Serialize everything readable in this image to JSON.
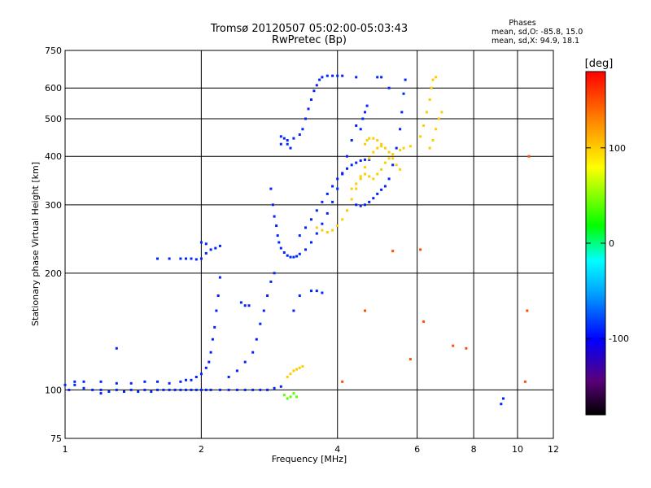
{
  "chart_data": {
    "type": "scatter",
    "title": "Tromsø 20120507 05:02:00-05:03:43",
    "subtitle": "RwPretec (Bp)",
    "xlabel": "Frequency [MHz]",
    "ylabel": "Stationary phase Virtual Height [km]",
    "x_scale": "log",
    "y_scale": "log",
    "xlim": [
      1,
      12
    ],
    "ylim": [
      75,
      750
    ],
    "x_ticks": [
      "1",
      "2",
      "4",
      "6",
      "8",
      "10",
      "12"
    ],
    "x_tick_values": [
      1,
      2,
      4,
      6,
      8,
      10,
      12
    ],
    "y_ticks": [
      "75",
      "100",
      "200",
      "300",
      "400",
      "500",
      "600",
      "750"
    ],
    "y_tick_values": [
      75,
      100,
      200,
      300,
      400,
      500,
      600,
      750
    ],
    "grid": true,
    "phases_info": {
      "heading": "Phases",
      "line1": "mean, sd,O:  -85.8, 15.0",
      "line2": "mean, sd,X:  94.9, 18.1"
    },
    "colorbar": {
      "label": "[deg]",
      "min": -180,
      "max": 180,
      "ticks": [
        "100",
        "0",
        "-100"
      ],
      "tick_values": [
        100,
        0,
        -100
      ],
      "colors": [
        "#000000",
        "#5a007a",
        "#0000ff",
        "#00a8ff",
        "#00ffff",
        "#00ff00",
        "#ffff00",
        "#ff8c00",
        "#ff0000"
      ]
    },
    "series": [
      {
        "mode": "O",
        "phase": -90,
        "points": [
          [
            1.0,
            103
          ],
          [
            1.02,
            100
          ],
          [
            1.05,
            103
          ],
          [
            1.1,
            101
          ],
          [
            1.15,
            100
          ],
          [
            1.2,
            100
          ],
          [
            1.25,
            99
          ],
          [
            1.3,
            100
          ],
          [
            1.35,
            99
          ],
          [
            1.4,
            100
          ],
          [
            1.45,
            99
          ],
          [
            1.5,
            100
          ],
          [
            1.55,
            99
          ],
          [
            1.6,
            100
          ],
          [
            1.65,
            100
          ],
          [
            1.7,
            100
          ],
          [
            1.75,
            100
          ],
          [
            1.8,
            100
          ],
          [
            1.85,
            100
          ],
          [
            1.9,
            100
          ],
          [
            1.95,
            100
          ],
          [
            2.0,
            100
          ],
          [
            2.05,
            100
          ],
          [
            2.1,
            100
          ],
          [
            2.2,
            100
          ],
          [
            2.3,
            100
          ],
          [
            2.4,
            100
          ],
          [
            2.5,
            100
          ],
          [
            2.6,
            100
          ],
          [
            2.7,
            100
          ],
          [
            2.8,
            100
          ],
          [
            2.9,
            101
          ],
          [
            3.0,
            102
          ],
          [
            1.05,
            105
          ],
          [
            1.1,
            105
          ],
          [
            1.2,
            105
          ],
          [
            1.3,
            104
          ],
          [
            1.4,
            104
          ],
          [
            1.5,
            105
          ],
          [
            1.6,
            105
          ],
          [
            1.7,
            104
          ],
          [
            1.8,
            105
          ],
          [
            1.85,
            106
          ],
          [
            1.9,
            106
          ],
          [
            1.95,
            108
          ],
          [
            2.0,
            110
          ],
          [
            2.05,
            114
          ],
          [
            2.08,
            118
          ],
          [
            2.1,
            125
          ],
          [
            2.12,
            135
          ],
          [
            2.14,
            145
          ],
          [
            2.16,
            160
          ],
          [
            2.18,
            175
          ],
          [
            2.2,
            195
          ],
          [
            2.3,
            108
          ],
          [
            2.4,
            112
          ],
          [
            2.5,
            118
          ],
          [
            2.6,
            125
          ],
          [
            2.65,
            135
          ],
          [
            2.7,
            148
          ],
          [
            2.75,
            160
          ],
          [
            2.8,
            175
          ],
          [
            2.85,
            190
          ],
          [
            2.9,
            200
          ],
          [
            2.45,
            168
          ],
          [
            2.5,
            165
          ],
          [
            2.55,
            165
          ],
          [
            1.6,
            218
          ],
          [
            1.7,
            218
          ],
          [
            1.8,
            218
          ],
          [
            1.85,
            218
          ],
          [
            1.9,
            218
          ],
          [
            1.95,
            217
          ],
          [
            2.0,
            218
          ],
          [
            2.05,
            225
          ],
          [
            2.1,
            230
          ],
          [
            2.15,
            232
          ],
          [
            2.2,
            235
          ],
          [
            2.0,
            240
          ],
          [
            2.05,
            238
          ],
          [
            2.85,
            330
          ],
          [
            2.88,
            300
          ],
          [
            2.9,
            280
          ],
          [
            2.93,
            265
          ],
          [
            2.95,
            250
          ],
          [
            2.97,
            240
          ],
          [
            3.0,
            232
          ],
          [
            3.05,
            226
          ],
          [
            3.1,
            222
          ],
          [
            3.15,
            220
          ],
          [
            3.2,
            220
          ],
          [
            3.25,
            221
          ],
          [
            3.3,
            224
          ],
          [
            3.4,
            230
          ],
          [
            3.5,
            240
          ],
          [
            3.6,
            253
          ],
          [
            3.7,
            268
          ],
          [
            3.8,
            285
          ],
          [
            3.9,
            305
          ],
          [
            4.0,
            330
          ],
          [
            4.1,
            360
          ],
          [
            4.2,
            400
          ],
          [
            4.3,
            440
          ],
          [
            4.4,
            480
          ],
          [
            3.3,
            250
          ],
          [
            3.4,
            262
          ],
          [
            3.5,
            275
          ],
          [
            3.6,
            290
          ],
          [
            3.7,
            305
          ],
          [
            3.8,
            320
          ],
          [
            3.9,
            335
          ],
          [
            4.0,
            350
          ],
          [
            4.1,
            362
          ],
          [
            4.2,
            372
          ],
          [
            4.3,
            380
          ],
          [
            4.4,
            385
          ],
          [
            4.5,
            390
          ],
          [
            4.6,
            392
          ],
          [
            4.7,
            392
          ],
          [
            3.0,
            430
          ],
          [
            3.1,
            440
          ],
          [
            3.2,
            445
          ],
          [
            3.3,
            455
          ],
          [
            3.35,
            470
          ],
          [
            3.4,
            500
          ],
          [
            3.45,
            530
          ],
          [
            3.5,
            560
          ],
          [
            3.55,
            590
          ],
          [
            3.6,
            610
          ],
          [
            3.65,
            630
          ],
          [
            3.7,
            640
          ],
          [
            3.8,
            645
          ],
          [
            3.9,
            645
          ],
          [
            4.0,
            645
          ],
          [
            4.1,
            645
          ],
          [
            3.0,
            450
          ],
          [
            3.05,
            445
          ],
          [
            3.1,
            430
          ],
          [
            3.15,
            420
          ],
          [
            4.4,
            300
          ],
          [
            4.5,
            298
          ],
          [
            4.6,
            300
          ],
          [
            4.7,
            305
          ],
          [
            4.8,
            312
          ],
          [
            4.9,
            320
          ],
          [
            5.0,
            328
          ],
          [
            5.1,
            335
          ],
          [
            5.2,
            350
          ],
          [
            5.3,
            380
          ],
          [
            5.4,
            420
          ],
          [
            5.5,
            470
          ],
          [
            5.55,
            520
          ],
          [
            5.6,
            580
          ],
          [
            5.65,
            630
          ],
          [
            4.5,
            470
          ],
          [
            4.55,
            500
          ],
          [
            4.6,
            520
          ],
          [
            4.65,
            540
          ],
          [
            5.2,
            600
          ],
          [
            4.9,
            640
          ],
          [
            5.0,
            640
          ],
          [
            4.4,
            640
          ],
          [
            3.5,
            180
          ],
          [
            3.6,
            180
          ],
          [
            3.7,
            178
          ],
          [
            3.3,
            175
          ],
          [
            3.2,
            160
          ],
          [
            1.3,
            128
          ],
          [
            1.2,
            98
          ],
          [
            9.3,
            95
          ],
          [
            9.2,
            92
          ]
        ]
      },
      {
        "mode": "X",
        "phase": 100,
        "points": [
          [
            3.6,
            262
          ],
          [
            3.7,
            258
          ],
          [
            3.8,
            255
          ],
          [
            3.9,
            258
          ],
          [
            4.0,
            265
          ],
          [
            4.1,
            275
          ],
          [
            4.2,
            290
          ],
          [
            4.3,
            310
          ],
          [
            4.4,
            330
          ],
          [
            4.5,
            350
          ],
          [
            4.6,
            375
          ],
          [
            4.7,
            395
          ],
          [
            4.8,
            410
          ],
          [
            4.9,
            420
          ],
          [
            5.0,
            425
          ],
          [
            4.6,
            430
          ],
          [
            4.65,
            440
          ],
          [
            4.7,
            445
          ],
          [
            4.8,
            445
          ],
          [
            4.9,
            440
          ],
          [
            5.0,
            430
          ],
          [
            5.1,
            420
          ],
          [
            5.2,
            410
          ],
          [
            5.3,
            395
          ],
          [
            5.4,
            380
          ],
          [
            5.5,
            370
          ],
          [
            4.3,
            330
          ],
          [
            4.4,
            340
          ],
          [
            4.5,
            355
          ],
          [
            4.6,
            360
          ],
          [
            4.7,
            355
          ],
          [
            4.8,
            350
          ],
          [
            4.9,
            360
          ],
          [
            5.0,
            370
          ],
          [
            5.1,
            385
          ],
          [
            5.2,
            395
          ],
          [
            5.3,
            405
          ],
          [
            5.5,
            415
          ],
          [
            5.6,
            420
          ],
          [
            5.8,
            425
          ],
          [
            6.1,
            450
          ],
          [
            6.2,
            480
          ],
          [
            6.3,
            520
          ],
          [
            6.4,
            560
          ],
          [
            6.45,
            600
          ],
          [
            6.5,
            630
          ],
          [
            6.4,
            420
          ],
          [
            6.5,
            440
          ],
          [
            6.6,
            470
          ],
          [
            6.7,
            500
          ],
          [
            6.8,
            520
          ],
          [
            6.6,
            640
          ],
          [
            3.1,
            108
          ],
          [
            3.15,
            110
          ],
          [
            3.2,
            112
          ],
          [
            3.25,
            113
          ],
          [
            3.3,
            114
          ],
          [
            3.35,
            115
          ]
        ]
      },
      {
        "mode": "scatter",
        "phase": 40,
        "points": [
          [
            3.05,
            97
          ],
          [
            3.1,
            95
          ],
          [
            3.15,
            96
          ],
          [
            3.2,
            98
          ],
          [
            3.25,
            96
          ]
        ]
      },
      {
        "mode": "scatter",
        "phase": 150,
        "points": [
          [
            4.1,
            105
          ],
          [
            5.8,
            120
          ],
          [
            6.1,
            230
          ],
          [
            7.2,
            130
          ],
          [
            7.7,
            128
          ],
          [
            5.3,
            228
          ],
          [
            4.6,
            160
          ],
          [
            6.2,
            150
          ],
          [
            10.5,
            160
          ],
          [
            10.6,
            400
          ],
          [
            10.4,
            105
          ]
        ]
      }
    ]
  }
}
